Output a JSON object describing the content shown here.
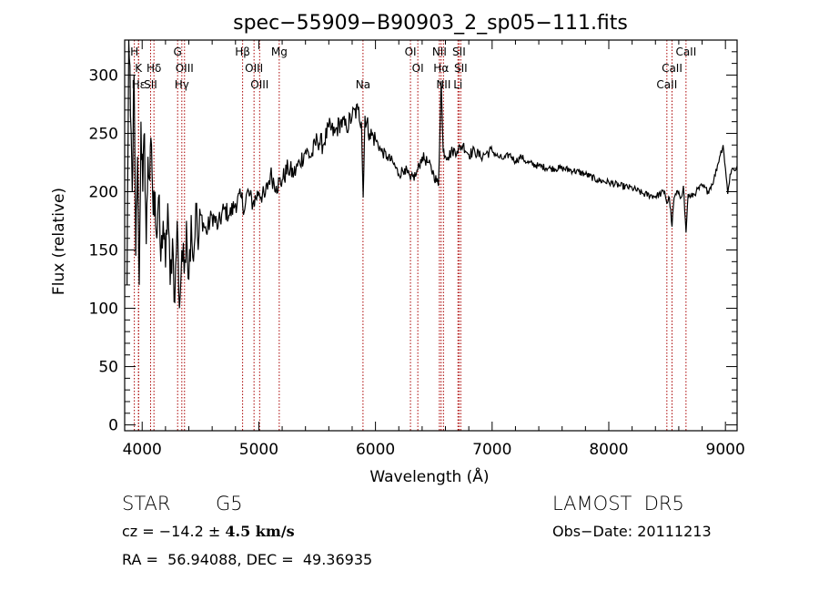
{
  "chart_data": {
    "type": "line",
    "title": "spec−55909−B90903_2_sp05−111.fits",
    "xlabel": "Wavelength (Å)",
    "ylabel": "Flux (relative)",
    "xlim": [
      3850,
      9100
    ],
    "ylim": [
      -5,
      330
    ],
    "xticks": [
      4000,
      5000,
      6000,
      7000,
      8000,
      9000
    ],
    "xticklabels": [
      "4000",
      "5000",
      "6000",
      "7000",
      "8000",
      "9000"
    ],
    "yticks": [
      0,
      50,
      100,
      150,
      200,
      250,
      300
    ],
    "yticklabels": [
      "0",
      "50",
      "100",
      "150",
      "200",
      "250",
      "300"
    ],
    "grid": false,
    "series": [
      {
        "color": "#000000",
        "x": [
          3870,
          3885,
          3900,
          3915,
          3930,
          3945,
          3960,
          3975,
          3990,
          4005,
          4020,
          4035,
          4050,
          4065,
          4080,
          4095,
          4110,
          4125,
          4140,
          4160,
          4180,
          4200,
          4220,
          4240,
          4260,
          4280,
          4300,
          4320,
          4340,
          4360,
          4380,
          4400,
          4420,
          4440,
          4460,
          4480,
          4500,
          4550,
          4600,
          4650,
          4700,
          4750,
          4800,
          4850,
          4880,
          4900,
          4950,
          5000,
          5050,
          5100,
          5150,
          5200,
          5250,
          5300,
          5350,
          5400,
          5450,
          5500,
          5550,
          5600,
          5650,
          5700,
          5750,
          5800,
          5850,
          5880,
          5895,
          5910,
          5950,
          6000,
          6050,
          6100,
          6150,
          6200,
          6250,
          6300,
          6350,
          6400,
          6450,
          6500,
          6540,
          6563,
          6580,
          6620,
          6660,
          6700,
          6750,
          6800,
          6850,
          6900,
          6950,
          7000,
          7050,
          7100,
          7150,
          7200,
          7250,
          7300,
          7400,
          7500,
          7600,
          7700,
          7800,
          7900,
          8000,
          8100,
          8200,
          8300,
          8400,
          8480,
          8498,
          8520,
          8542,
          8560,
          8600,
          8620,
          8640,
          8662,
          8680,
          8700,
          8750,
          8800,
          8850,
          8900,
          8950,
          8980,
          9000,
          9020,
          9040,
          9060,
          9080,
          9100
        ],
        "y": [
          120,
          330,
          265,
          200,
          300,
          145,
          230,
          120,
          260,
          200,
          250,
          155,
          230,
          210,
          240,
          180,
          200,
          160,
          195,
          140,
          175,
          135,
          190,
          120,
          160,
          105,
          175,
          100,
          150,
          130,
          175,
          125,
          180,
          140,
          190,
          150,
          180,
          165,
          180,
          170,
          185,
          180,
          190,
          195,
          185,
          200,
          190,
          200,
          195,
          215,
          205,
          210,
          220,
          215,
          225,
          235,
          230,
          245,
          240,
          255,
          250,
          260,
          255,
          265,
          270,
          260,
          195,
          265,
          250,
          245,
          235,
          230,
          225,
          215,
          220,
          210,
          215,
          230,
          225,
          215,
          205,
          295,
          235,
          230,
          235,
          235,
          240,
          232,
          235,
          230,
          233,
          235,
          230,
          228,
          232,
          226,
          230,
          225,
          222,
          220,
          220,
          218,
          215,
          210,
          208,
          205,
          203,
          198,
          196,
          200,
          190,
          195,
          170,
          195,
          200,
          195,
          205,
          165,
          198,
          195,
          200,
          205,
          200,
          210,
          230,
          240,
          220,
          198,
          215,
          220,
          218,
          222
        ]
      }
    ],
    "annotations": [
      {
        "label": "H",
        "x": 3933,
        "row": 0
      },
      {
        "label": "K",
        "x": 3968,
        "row": 1
      },
      {
        "label": "Hε",
        "x": 3970,
        "row": 2
      },
      {
        "label": "Hδ",
        "x": 4101,
        "row": 1
      },
      {
        "label": "SII",
        "x": 4072,
        "row": 2
      },
      {
        "label": "G",
        "x": 4304,
        "row": 0
      },
      {
        "label": "OIII",
        "x": 4363,
        "row": 1
      },
      {
        "label": "Hγ",
        "x": 4340,
        "row": 2
      },
      {
        "label": "Hβ",
        "x": 4861,
        "row": 0
      },
      {
        "label": "OIII",
        "x": 4959,
        "row": 1
      },
      {
        "label": "OIII",
        "x": 5007,
        "row": 2
      },
      {
        "label": "Mg",
        "x": 5175,
        "row": 0
      },
      {
        "label": "Na",
        "x": 5893,
        "row": 2
      },
      {
        "label": "OI",
        "x": 6300,
        "row": 0
      },
      {
        "label": "OI",
        "x": 6363,
        "row": 1
      },
      {
        "label": "NII",
        "x": 6548,
        "row": 0
      },
      {
        "label": "Hα",
        "x": 6563,
        "row": 1
      },
      {
        "label": "NII",
        "x": 6583,
        "row": 2
      },
      {
        "label": "SII",
        "x": 6716,
        "row": 0
      },
      {
        "label": "SII",
        "x": 6731,
        "row": 1
      },
      {
        "label": "Li",
        "x": 6707,
        "row": 2
      },
      {
        "label": "CaII",
        "x": 8662,
        "row": 0
      },
      {
        "label": "CaII",
        "x": 8542,
        "row": 1
      },
      {
        "label": "CaII",
        "x": 8498,
        "row": 2
      }
    ],
    "annotation_color": "#aa0000"
  },
  "info": {
    "class": "STAR",
    "subclass": "G5",
    "survey": "LAMOST  DR5",
    "cz_prefix": "cz = −14.2 ± ",
    "cz_value": "4.5 km/s",
    "obs_date": "Obs−Date: 20111213",
    "radec": "RA =  56.94088, DEC =  49.36935"
  }
}
